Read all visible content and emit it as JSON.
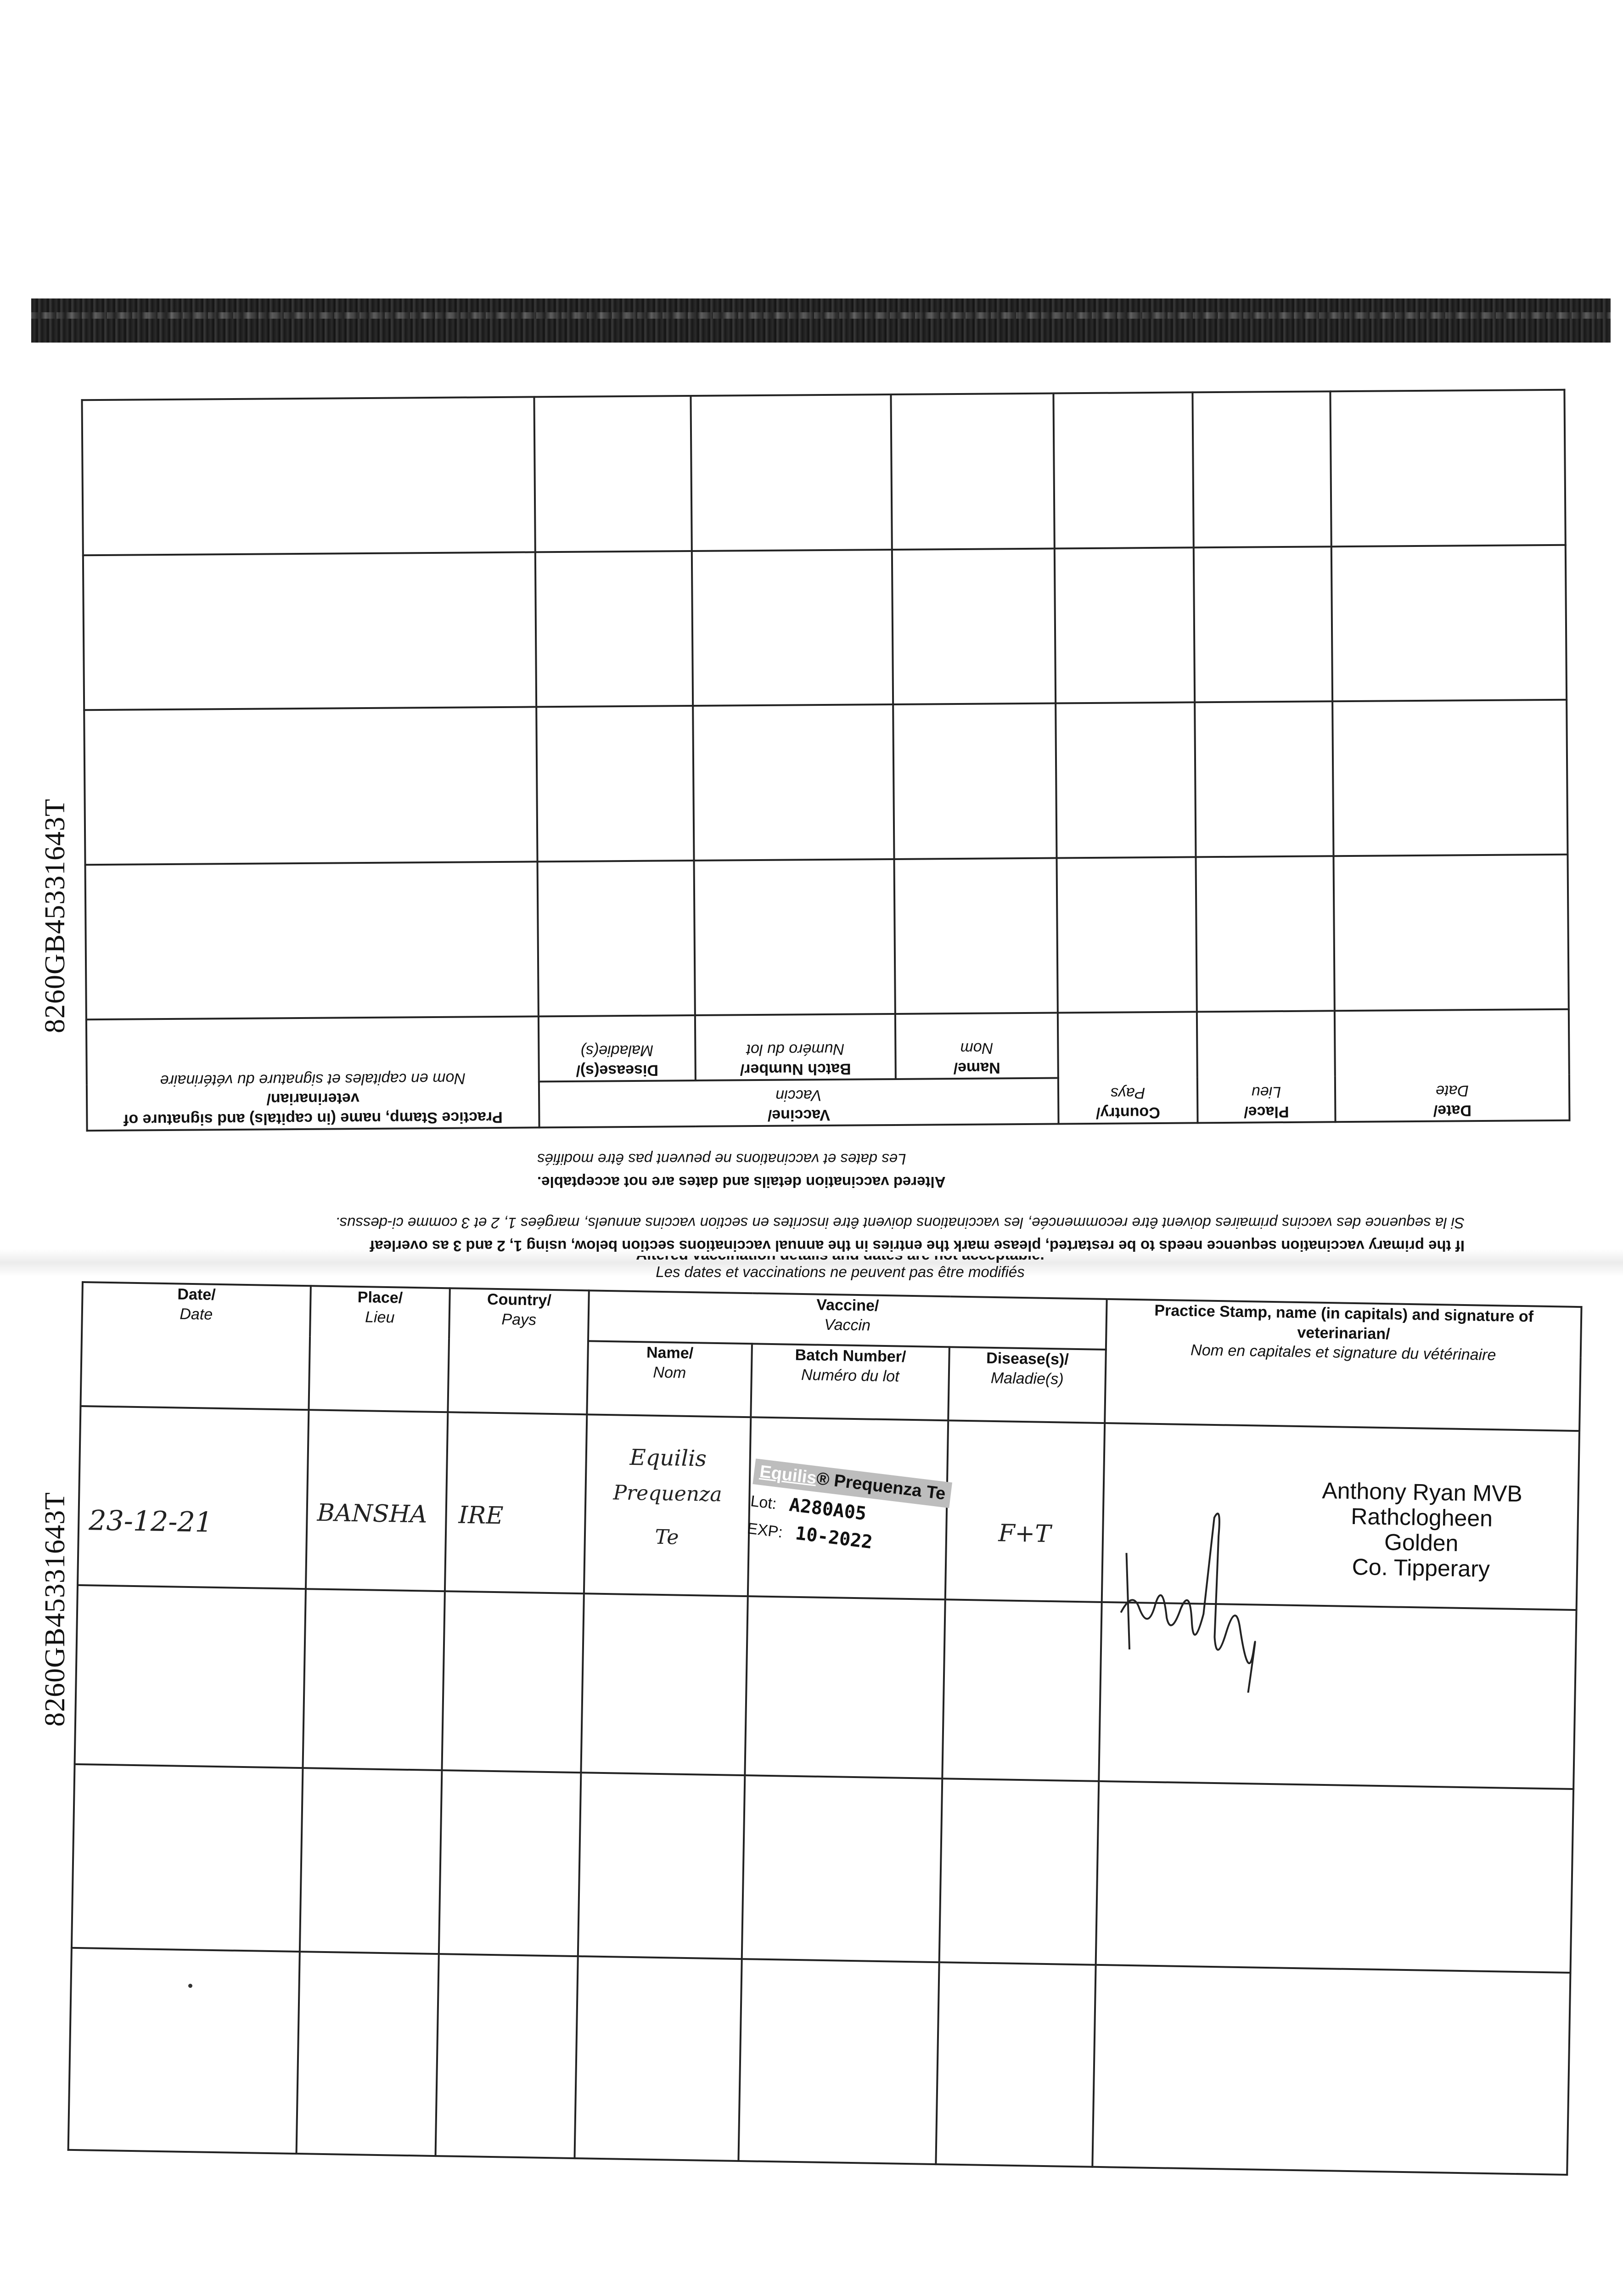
{
  "document_id": "8260GB45331643T",
  "table_headers": {
    "date": "Date/",
    "date_fr": "Date",
    "place": "Place/",
    "place_fr": "Lieu",
    "country": "Country/",
    "country_fr": "Pays",
    "vaccine": "Vaccine/",
    "vaccine_fr": "Vaccin",
    "name": "Name/",
    "name_fr": "Nom",
    "batch": "Batch Number/",
    "batch_fr": "Numéro du lot",
    "disease": "Disease(s)/",
    "disease_fr": "Maladie(s)",
    "practice": "Practice Stamp, name (in capitals) and signature of veterinarian/",
    "practice_fr": "Nom en capitales et signature du vétérinaire"
  },
  "notes": {
    "restart_en": "If the primary vaccination sequence needs to be restarted, please mark the entries in the annual vaccinations section below, using 1, 2 and 3 as overleaf",
    "restart_fr": "Si la sequence des vaccins primaires doivent être recommencée, les vaccinations doivent être inscrites en section vaccins annuels, margées 1, 2 et 3 comme ci-dessus.",
    "altered_en": "Altered vaccination details and dates are not acceptable.",
    "altered_fr": "Les dates et vaccinations ne peuvent pas être modifiés"
  },
  "entries": [
    {
      "date": "23-12-21",
      "place": "BANSHA",
      "country": "IRE",
      "vaccine_name": [
        "Equilis",
        "Prequenza",
        "Te"
      ],
      "batch_label": {
        "brand": "Equilis",
        "product": "® Prequenza Te",
        "lot_label": "Lot:",
        "lot": "A280A05",
        "exp_label": "EXP:",
        "exp": "10-2022"
      },
      "disease": "F+T",
      "vet_stamp": [
        "Anthony Ryan MVB",
        "Rathclogheen",
        "Golden",
        "Co. Tipperary"
      ]
    }
  ]
}
